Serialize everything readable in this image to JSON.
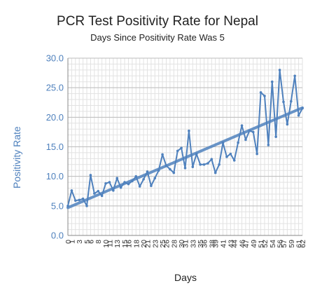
{
  "chart_data": {
    "type": "line",
    "title": "PCR Test Positivity Rate for Nepal",
    "subtitle": "Days Since Positivity Rate Was 5",
    "xlabel": "Days",
    "ylabel": "Positivity Rate",
    "xlim": [
      0,
      62
    ],
    "ylim": [
      0,
      30
    ],
    "yticks": [
      "0.0",
      "5.0",
      "10.0",
      "15.0",
      "20.0",
      "25.0",
      "30.0"
    ],
    "xticks": [
      "0",
      "1",
      "3",
      "5",
      "6",
      "8",
      "10",
      "11",
      "13",
      "15",
      "16",
      "18",
      "20",
      "21",
      "23",
      "25",
      "26",
      "28",
      "30",
      "31",
      "33",
      "35",
      "36",
      "38",
      "39",
      "41",
      "43",
      "44",
      "46",
      "47",
      "49",
      "51",
      "52",
      "54",
      "56",
      "57",
      "59",
      "61",
      "62"
    ],
    "grid": true,
    "series": [
      {
        "kind": "data",
        "x": [
          0,
          1,
          2,
          3,
          4,
          5,
          6,
          7,
          8,
          9,
          10,
          11,
          12,
          13,
          14,
          15,
          16,
          17,
          18,
          19,
          20,
          21,
          22,
          23,
          24,
          25,
          26,
          27,
          28,
          29,
          30,
          31,
          32,
          33,
          34,
          35,
          36,
          37,
          38,
          39,
          40,
          41,
          42,
          43,
          44,
          45,
          46,
          47,
          48,
          49,
          50,
          51,
          52,
          53,
          54,
          55,
          56,
          57,
          58,
          59,
          60,
          61,
          62
        ],
        "values": [
          5.0,
          7.6,
          5.9,
          6.0,
          6.2,
          5.0,
          10.2,
          7.1,
          7.5,
          6.7,
          8.8,
          9.0,
          7.6,
          9.7,
          8.1,
          9.0,
          8.7,
          9.2,
          10.0,
          8.3,
          9.5,
          10.8,
          8.4,
          9.7,
          11.0,
          13.7,
          11.8,
          11.2,
          10.6,
          14.3,
          14.8,
          11.4,
          17.7,
          11.6,
          13.8,
          12.0,
          12.0,
          12.2,
          12.9,
          10.6,
          12.0,
          15.7,
          13.3,
          13.8,
          12.7,
          15.7,
          18.6,
          16.2,
          17.7,
          17.5,
          13.8,
          24.2,
          23.6,
          15.3,
          26.0,
          16.7,
          28.0,
          22.6,
          18.8,
          22.7,
          27.0,
          20.3,
          21.5
        ],
        "color": "#4f81bd"
      },
      {
        "kind": "trendline",
        "x": [
          0,
          62
        ],
        "values": [
          4.7,
          21.6
        ],
        "color": "#4f81bd"
      }
    ]
  }
}
